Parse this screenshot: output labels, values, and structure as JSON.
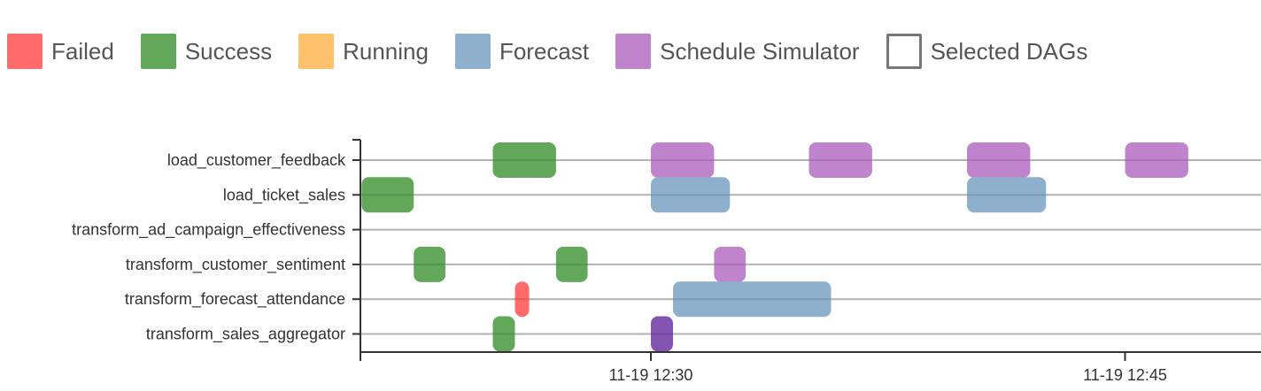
{
  "legend": [
    {
      "key": "failed",
      "label": "Failed",
      "color": "#ff6b6b"
    },
    {
      "key": "success",
      "label": "Success",
      "color": "#63a85a"
    },
    {
      "key": "running",
      "label": "Running",
      "color": "#ffc16b"
    },
    {
      "key": "forecast",
      "label": "Forecast",
      "color": "#8eb0cc"
    },
    {
      "key": "schedule",
      "label": "Schedule Simulator",
      "color": "#c084cc"
    },
    {
      "key": "selected",
      "label": "Selected DAGs",
      "color": "#777777",
      "outline": true
    }
  ],
  "colors": {
    "failed": "#ff6b6b",
    "success": "#63a85a",
    "running": "#ffc16b",
    "forecast": "#8eb0cc",
    "schedule": "#c084cc",
    "overlap": "#8355b0",
    "gridline": "#cccccc",
    "axis": "#333333"
  },
  "chart_data": {
    "type": "gantt",
    "rows": [
      "load_customer_feedback",
      "load_ticket_sales",
      "transform_ad_campaign_effectiveness",
      "transform_customer_sentiment",
      "transform_forecast_attendance",
      "transform_sales_aggregator"
    ],
    "x_ticks": [
      {
        "label": "11-19 12:30",
        "minutes": 30
      },
      {
        "label": "11-19 12:45",
        "minutes": 45
      }
    ],
    "x_range_minutes": [
      20.85,
      49.3
    ],
    "bars": [
      {
        "row": "load_customer_feedback",
        "status": "success",
        "start": 25.0,
        "end": 27.0
      },
      {
        "row": "load_customer_feedback",
        "status": "schedule",
        "start": 30.0,
        "end": 32.0
      },
      {
        "row": "load_customer_feedback",
        "status": "schedule",
        "start": 35.0,
        "end": 37.0
      },
      {
        "row": "load_customer_feedback",
        "status": "schedule",
        "start": 40.0,
        "end": 42.0
      },
      {
        "row": "load_customer_feedback",
        "status": "schedule",
        "start": 45.0,
        "end": 47.0
      },
      {
        "row": "load_ticket_sales",
        "status": "success",
        "start": 20.85,
        "end": 22.5
      },
      {
        "row": "load_ticket_sales",
        "status": "forecast",
        "start": 30.0,
        "end": 32.5
      },
      {
        "row": "load_ticket_sales",
        "status": "forecast",
        "start": 40.0,
        "end": 42.5
      },
      {
        "row": "transform_customer_sentiment",
        "status": "success",
        "start": 22.5,
        "end": 23.5
      },
      {
        "row": "transform_customer_sentiment",
        "status": "success",
        "start": 27.0,
        "end": 28.0
      },
      {
        "row": "transform_customer_sentiment",
        "status": "schedule",
        "start": 32.0,
        "end": 33.0
      },
      {
        "row": "transform_forecast_attendance",
        "status": "failed",
        "start": 25.7,
        "end": 26.15
      },
      {
        "row": "transform_forecast_attendance",
        "status": "forecast",
        "start": 30.7,
        "end": 35.7
      },
      {
        "row": "transform_sales_aggregator",
        "status": "success",
        "start": 25.0,
        "end": 25.7
      },
      {
        "row": "transform_sales_aggregator",
        "status": "overlap",
        "start": 30.0,
        "end": 30.7
      }
    ]
  }
}
